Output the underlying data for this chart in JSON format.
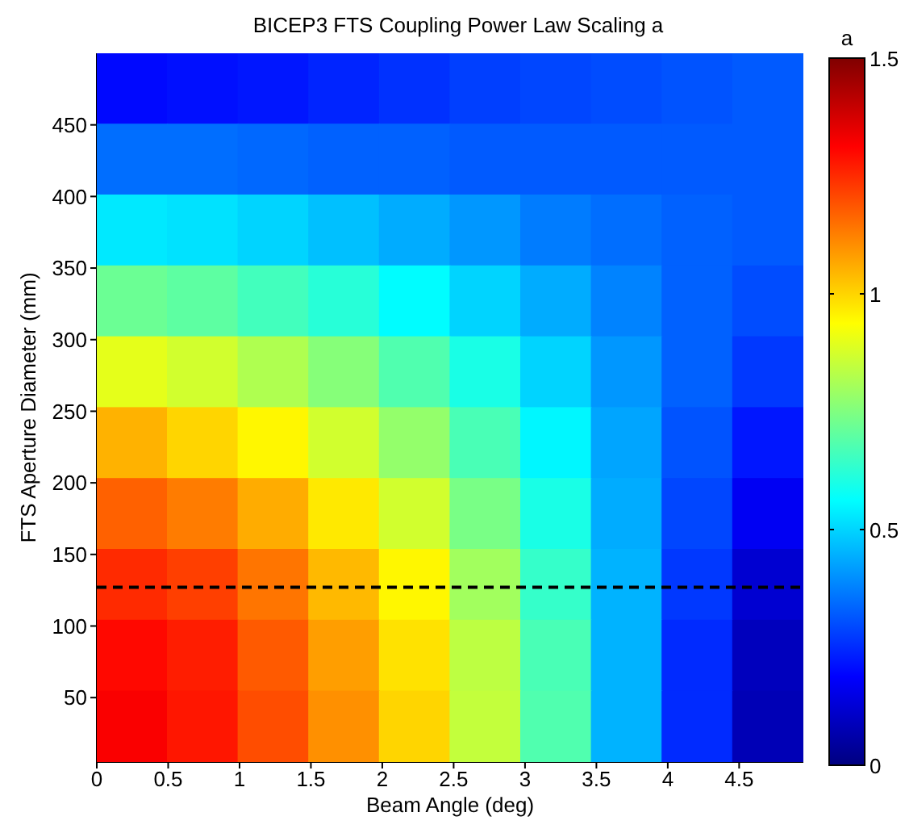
{
  "chart_data": {
    "type": "heatmap",
    "title": "BICEP3 FTS Coupling Power Law Scaling a",
    "xlabel": "Beam Angle (deg)",
    "ylabel": "FTS Aperture Diameter (mm)",
    "clabel": "a",
    "xlim": [
      0,
      4.95
    ],
    "ylim": [
      5,
      500
    ],
    "xticks": [
      0,
      0.5,
      1,
      1.5,
      2,
      2.5,
      3,
      3.5,
      4,
      4.5
    ],
    "yticks": [
      50,
      100,
      150,
      200,
      250,
      300,
      350,
      400,
      450
    ],
    "clim": [
      0,
      1.5
    ],
    "cticks": [
      0,
      0.5,
      1,
      1.5
    ],
    "cells": [
      [
        0.2,
        0.21,
        0.22,
        0.24,
        0.26,
        0.28,
        0.29,
        0.3,
        0.31,
        0.32
      ],
      [
        0.35,
        0.35,
        0.34,
        0.33,
        0.33,
        0.32,
        0.32,
        0.32,
        0.32,
        0.32
      ],
      [
        0.53,
        0.52,
        0.5,
        0.47,
        0.44,
        0.41,
        0.37,
        0.35,
        0.33,
        0.32
      ],
      [
        0.72,
        0.7,
        0.66,
        0.62,
        0.56,
        0.5,
        0.44,
        0.38,
        0.33,
        0.3
      ],
      [
        0.9,
        0.87,
        0.82,
        0.76,
        0.68,
        0.6,
        0.5,
        0.41,
        0.33,
        0.27
      ],
      [
        1.05,
        1.0,
        0.95,
        0.87,
        0.78,
        0.67,
        0.55,
        0.43,
        0.31,
        0.22
      ],
      [
        1.17,
        1.13,
        1.06,
        0.97,
        0.87,
        0.74,
        0.6,
        0.44,
        0.29,
        0.17
      ],
      [
        1.25,
        1.22,
        1.14,
        1.04,
        0.95,
        0.8,
        0.64,
        0.45,
        0.27,
        0.12
      ],
      [
        1.3,
        1.27,
        1.18,
        1.08,
        0.98,
        0.84,
        0.67,
        0.45,
        0.25,
        0.09
      ],
      [
        1.32,
        1.28,
        1.2,
        1.1,
        1.0,
        0.85,
        0.68,
        0.45,
        0.25,
        0.08
      ]
    ],
    "ref_lines": [
      {
        "axis": "y",
        "value": 127,
        "color": "#000000",
        "line_style": "dashed"
      }
    ]
  }
}
